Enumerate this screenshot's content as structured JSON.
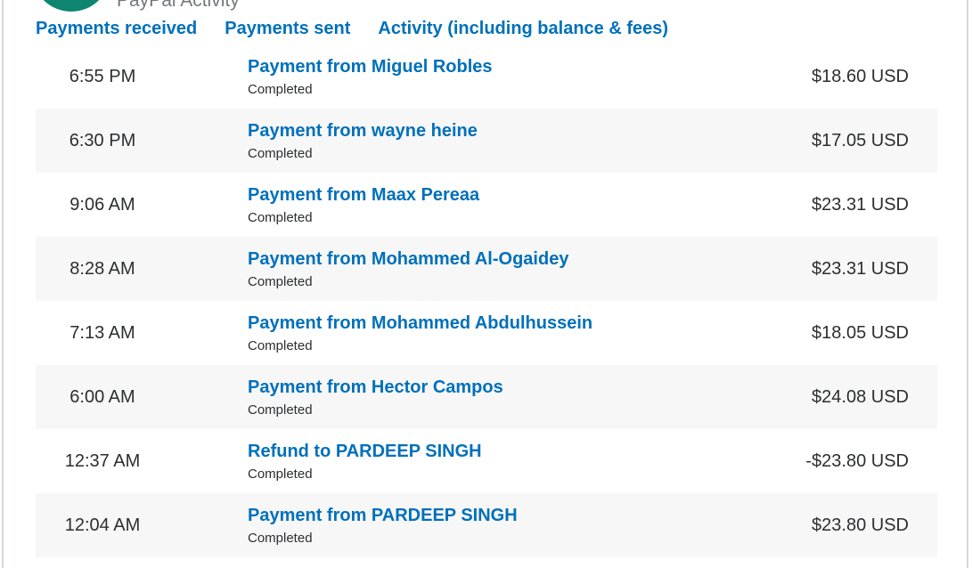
{
  "header": {
    "title": "PayPal Activity"
  },
  "tabs": [
    {
      "label": "Payments received"
    },
    {
      "label": "Payments sent"
    },
    {
      "label": "Activity (including balance & fees)"
    }
  ],
  "transactions": [
    {
      "time": "6:55 PM",
      "title": "Payment from Miguel Robles",
      "status": "Completed",
      "amount": "$18.60 USD"
    },
    {
      "time": "6:30 PM",
      "title": "Payment from wayne heine",
      "status": "Completed",
      "amount": "$17.05 USD"
    },
    {
      "time": "9:06 AM",
      "title": "Payment from Maax Pereaa",
      "status": "Completed",
      "amount": "$23.31 USD"
    },
    {
      "time": "8:28 AM",
      "title": "Payment from Mohammed Al-Ogaidey",
      "status": "Completed",
      "amount": "$23.31 USD"
    },
    {
      "time": "7:13 AM",
      "title": "Payment from Mohammed Abdulhussein",
      "status": "Completed",
      "amount": "$18.05 USD"
    },
    {
      "time": "6:00 AM",
      "title": "Payment from Hector Campos",
      "status": "Completed",
      "amount": "$24.08 USD"
    },
    {
      "time": "12:37 AM",
      "title": "Refund to PARDEEP SINGH",
      "status": "Completed",
      "amount": "-$23.80 USD"
    },
    {
      "time": "12:04 AM",
      "title": "Payment from PARDEEP SINGH",
      "status": "Completed",
      "amount": "$23.80 USD"
    }
  ],
  "colors": {
    "link_blue": "#0070ba",
    "text_dark": "#2c2e2f",
    "row_alt": "#f7f7f8",
    "avatar_green": "#0e8570",
    "header_gray": "#75797c",
    "border_gray": "#d5d8da"
  }
}
